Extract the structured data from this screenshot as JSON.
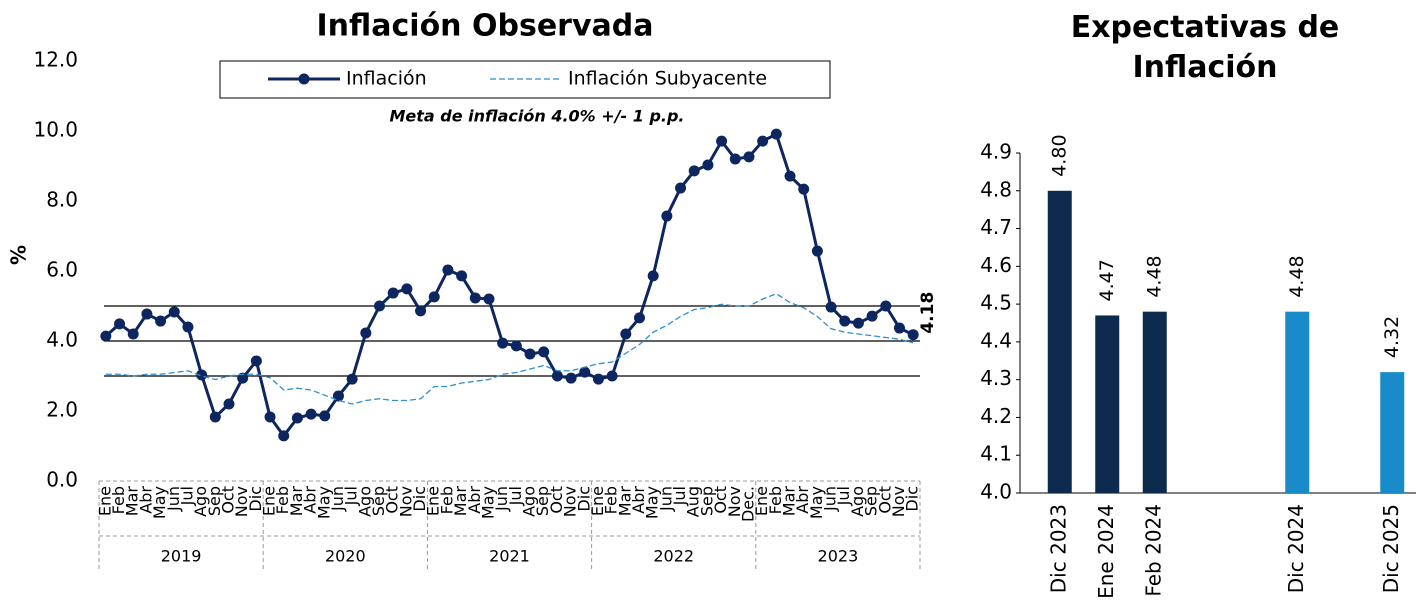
{
  "chart_data": [
    {
      "type": "line",
      "title": "Inflación Observada",
      "ylabel": "%",
      "annotation": "Meta de inflación 4.0% +/- 1 p.p.",
      "categories": [
        "Ene",
        "Feb",
        "Mar",
        "Abr",
        "May",
        "Jun",
        "Jul",
        "Ago",
        "Sep",
        "Oct",
        "Nov",
        "Dic",
        "Ene",
        "Feb",
        "Mar",
        "Abr",
        "May",
        "Jun",
        "Jul",
        "Ago",
        "Sep",
        "Oct",
        "Nov",
        "Dic",
        "Ene",
        "Feb",
        "Mar",
        "Abr",
        "May",
        "Jun",
        "Jul",
        "Ago",
        "Sep",
        "Oct",
        "Nov",
        "Dic",
        "Ene",
        "Feb",
        "Mar",
        "Abr",
        "May",
        "Jun",
        "Jul",
        "Aug",
        "Sep",
        "Oct",
        "Nov",
        "Dec.",
        "Ene",
        "Feb",
        "Mar",
        "Abr",
        "May",
        "Jun",
        "Jul",
        "Ago",
        "Sep",
        "Oct",
        "Nov",
        "Dic"
      ],
      "year_groups": [
        "2019",
        "2020",
        "2021",
        "2022",
        "2023"
      ],
      "series": [
        {
          "name": "Inflación",
          "color": "#0d2660",
          "markers": true,
          "dashed": false,
          "values": [
            4.14,
            4.49,
            4.2,
            4.77,
            4.57,
            4.83,
            4.4,
            3.03,
            1.83,
            2.2,
            2.94,
            3.43,
            1.83,
            1.29,
            1.8,
            1.91,
            1.86,
            2.43,
            2.91,
            4.23,
            5.0,
            5.37,
            5.49,
            4.86,
            5.26,
            6.03,
            5.86,
            5.23,
            5.2,
            3.94,
            3.86,
            3.63,
            3.69,
            3.0,
            2.94,
            3.11,
            2.91,
            3.0,
            4.2,
            4.66,
            5.86,
            7.57,
            8.37,
            8.86,
            9.03,
            9.71,
            9.2,
            9.26,
            9.71,
            9.91,
            8.71,
            8.34,
            6.57,
            4.97,
            4.57,
            4.51,
            4.71,
            5.0,
            4.37,
            4.18
          ]
        },
        {
          "name": "Inflación Subyacente",
          "color": "#2f8fd0",
          "markers": false,
          "dashed": true,
          "values": [
            3.05,
            3.05,
            3.0,
            3.05,
            3.05,
            3.1,
            3.15,
            3.0,
            2.9,
            3.0,
            3.05,
            3.05,
            2.95,
            2.6,
            2.65,
            2.6,
            2.45,
            2.3,
            2.2,
            2.3,
            2.35,
            2.3,
            2.3,
            2.35,
            2.7,
            2.7,
            2.8,
            2.85,
            2.9,
            3.05,
            3.1,
            3.2,
            3.3,
            3.15,
            3.15,
            3.25,
            3.35,
            3.4,
            3.65,
            3.9,
            4.25,
            4.45,
            4.7,
            4.9,
            4.95,
            5.05,
            5.0,
            5.0,
            5.2,
            5.35,
            5.1,
            4.95,
            4.7,
            4.35,
            4.25,
            4.2,
            4.15,
            4.1,
            4.05,
            3.95
          ]
        }
      ],
      "reference_lines": [
        3,
        4,
        5
      ],
      "ylim": [
        0,
        12
      ],
      "yticks": [
        {
          "value": 0,
          "label": "0.0"
        },
        {
          "value": 2,
          "label": "2.0"
        },
        {
          "value": 4,
          "label": "4.0"
        },
        {
          "value": 6,
          "label": "6.0"
        },
        {
          "value": 8,
          "label": "8.0"
        },
        {
          "value": 10,
          "label": "10.0"
        },
        {
          "value": 12,
          "label": "12.0"
        }
      ],
      "legend": "top"
    },
    {
      "type": "bar",
      "title": "Expectativas de Inflación",
      "categories": [
        "Dic 2023",
        "Ene 2024",
        "Feb 2024",
        null,
        null,
        "Dic  2024",
        null,
        "Dic 2025"
      ],
      "values": [
        4.8,
        4.47,
        4.48,
        null,
        null,
        4.48,
        null,
        4.32
      ],
      "value_labels": [
        "4.80",
        "4.47",
        "4.48",
        null,
        null,
        "4.48",
        null,
        "4.32"
      ],
      "colors": [
        "#0d2b4e",
        "#0d2b4e",
        "#0d2b4e",
        null,
        null,
        "#1a8bc9",
        null,
        "#1a8bc9"
      ],
      "ylim": [
        4,
        4.9
      ],
      "yticks": [
        {
          "value": 4,
          "label": "4.0"
        },
        4.1,
        4.2,
        4.3,
        4.4,
        4.5,
        4.6,
        4.7,
        4.8,
        4.9
      ]
    }
  ]
}
